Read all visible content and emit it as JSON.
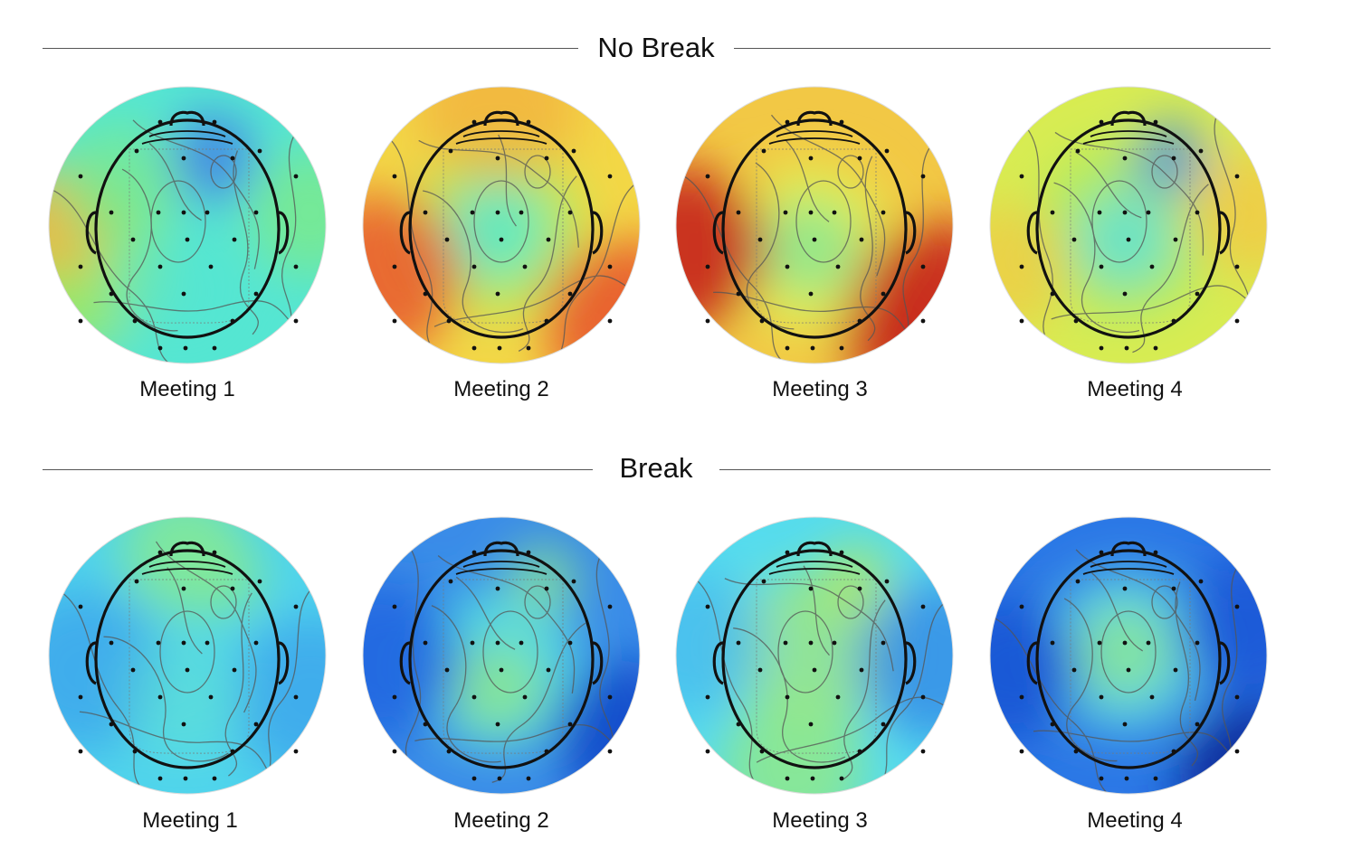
{
  "sections": [
    {
      "title": "No Break",
      "panels": [
        {
          "caption": "Meeting 1",
          "palette": [
            "#55e6d2",
            "#7dea8a",
            "#9fe860",
            "#f2b640",
            "#3f7de8"
          ]
        },
        {
          "caption": "Meeting 2",
          "palette": [
            "#f3d746",
            "#f2a63a",
            "#e8572e",
            "#5ee9c4",
            "#b8ea5a"
          ]
        },
        {
          "caption": "Meeting 3",
          "palette": [
            "#f2c845",
            "#e8792f",
            "#c82a1e",
            "#8ce890",
            "#e6ee4e"
          ]
        },
        {
          "caption": "Meeting 4",
          "palette": [
            "#d8ec52",
            "#b0ea60",
            "#f2c845",
            "#60e2d6",
            "#3f86e8"
          ]
        }
      ]
    },
    {
      "title": "Break",
      "panels": [
        {
          "caption": "Meeting 1",
          "palette": [
            "#4fd4ec",
            "#3fa8ec",
            "#1c5ce0",
            "#86ea92",
            "#64e6d0"
          ]
        },
        {
          "caption": "Meeting 2",
          "palette": [
            "#3a8ce8",
            "#2064e0",
            "#1244c8",
            "#55e0e4",
            "#8ce690"
          ]
        },
        {
          "caption": "Meeting 3",
          "palette": [
            "#55dcee",
            "#46b6ee",
            "#2c7ce6",
            "#94ea84",
            "#b8ea5a"
          ]
        },
        {
          "caption": "Meeting 4",
          "palette": [
            "#2c78e6",
            "#1a54d4",
            "#0c2c9a",
            "#5ed6e6",
            "#8ee88c"
          ]
        }
      ]
    }
  ]
}
